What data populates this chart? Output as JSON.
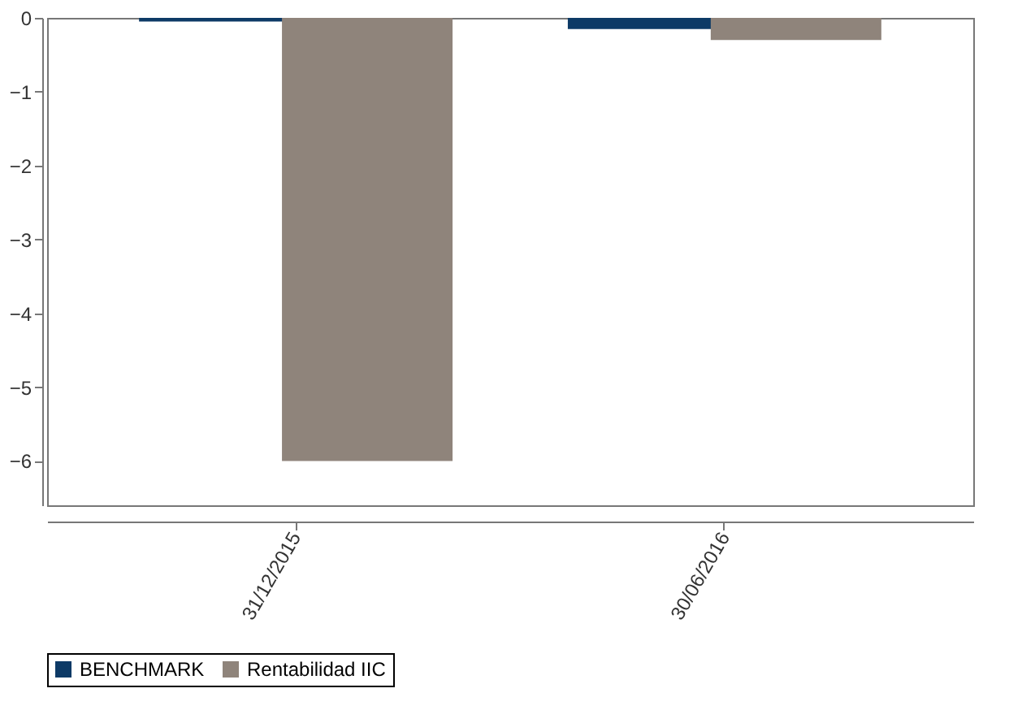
{
  "chart_data": {
    "type": "bar",
    "categories": [
      "31/12/2015",
      "30/06/2016"
    ],
    "series": [
      {
        "name": "BENCHMARK",
        "color": "#0d3a66",
        "values": [
          -0.05,
          -0.15
        ]
      },
      {
        "name": "Rentabilidad IIC",
        "color": "#8f847b",
        "values": [
          -6,
          -0.3
        ]
      }
    ],
    "ylim": [
      -6.6,
      0
    ],
    "yticks": [
      -6,
      -5,
      -4,
      -3,
      -2,
      -1,
      0
    ],
    "grid": false,
    "legend": "bottom"
  }
}
